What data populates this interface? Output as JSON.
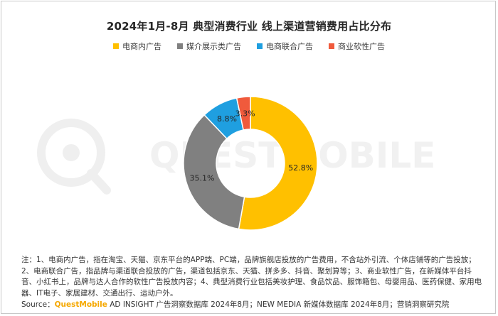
{
  "title": "2024年1月-8月 典型消费行业 线上渠道营销费用占比分布",
  "watermark": "QUESTMOBILE",
  "chart_data": {
    "type": "pie",
    "donut": true,
    "series": [
      {
        "name": "电商内广告",
        "value": 52.8,
        "label": "52.8%",
        "color": "#FFC000"
      },
      {
        "name": "媒介展示类广告",
        "value": 35.1,
        "label": "35.1%",
        "color": "#808080"
      },
      {
        "name": "电商联合广告",
        "value": 8.8,
        "label": "8.8%",
        "color": "#1F9FE0"
      },
      {
        "name": "商业软性广告",
        "value": 3.3,
        "label": "3.3%",
        "color": "#F05A3C"
      }
    ],
    "legend_position": "top"
  },
  "notes": "注：1、电商内广告，指在淘宝、天猫、京东平台的APP端、PC端，品牌旗舰店投放的广告费用，不含站外引流、个体店铺等的广告投放；2、电商联合广告，指品牌与渠道联合投放的广告，渠道包括京东、天猫、拼多多、抖音、聚划算等；3、商业软性广告，在新媒体平台抖音、小红书上，品牌与达人合作的软性广告投放内容；4、典型消费行业包括美妆护理、食品饮品、服饰箱包、母婴用品、医药保健、家用电器、IT电子、家居建材、交通出行、运动户外。",
  "source": {
    "label": "Source：",
    "brand": "QuestMobile",
    "rest": " AD INSIGHT 广告洞察数据库 2024年8月；NEW MEDIA 新媒体数据库 2024年8月；营销洞察研究院"
  }
}
